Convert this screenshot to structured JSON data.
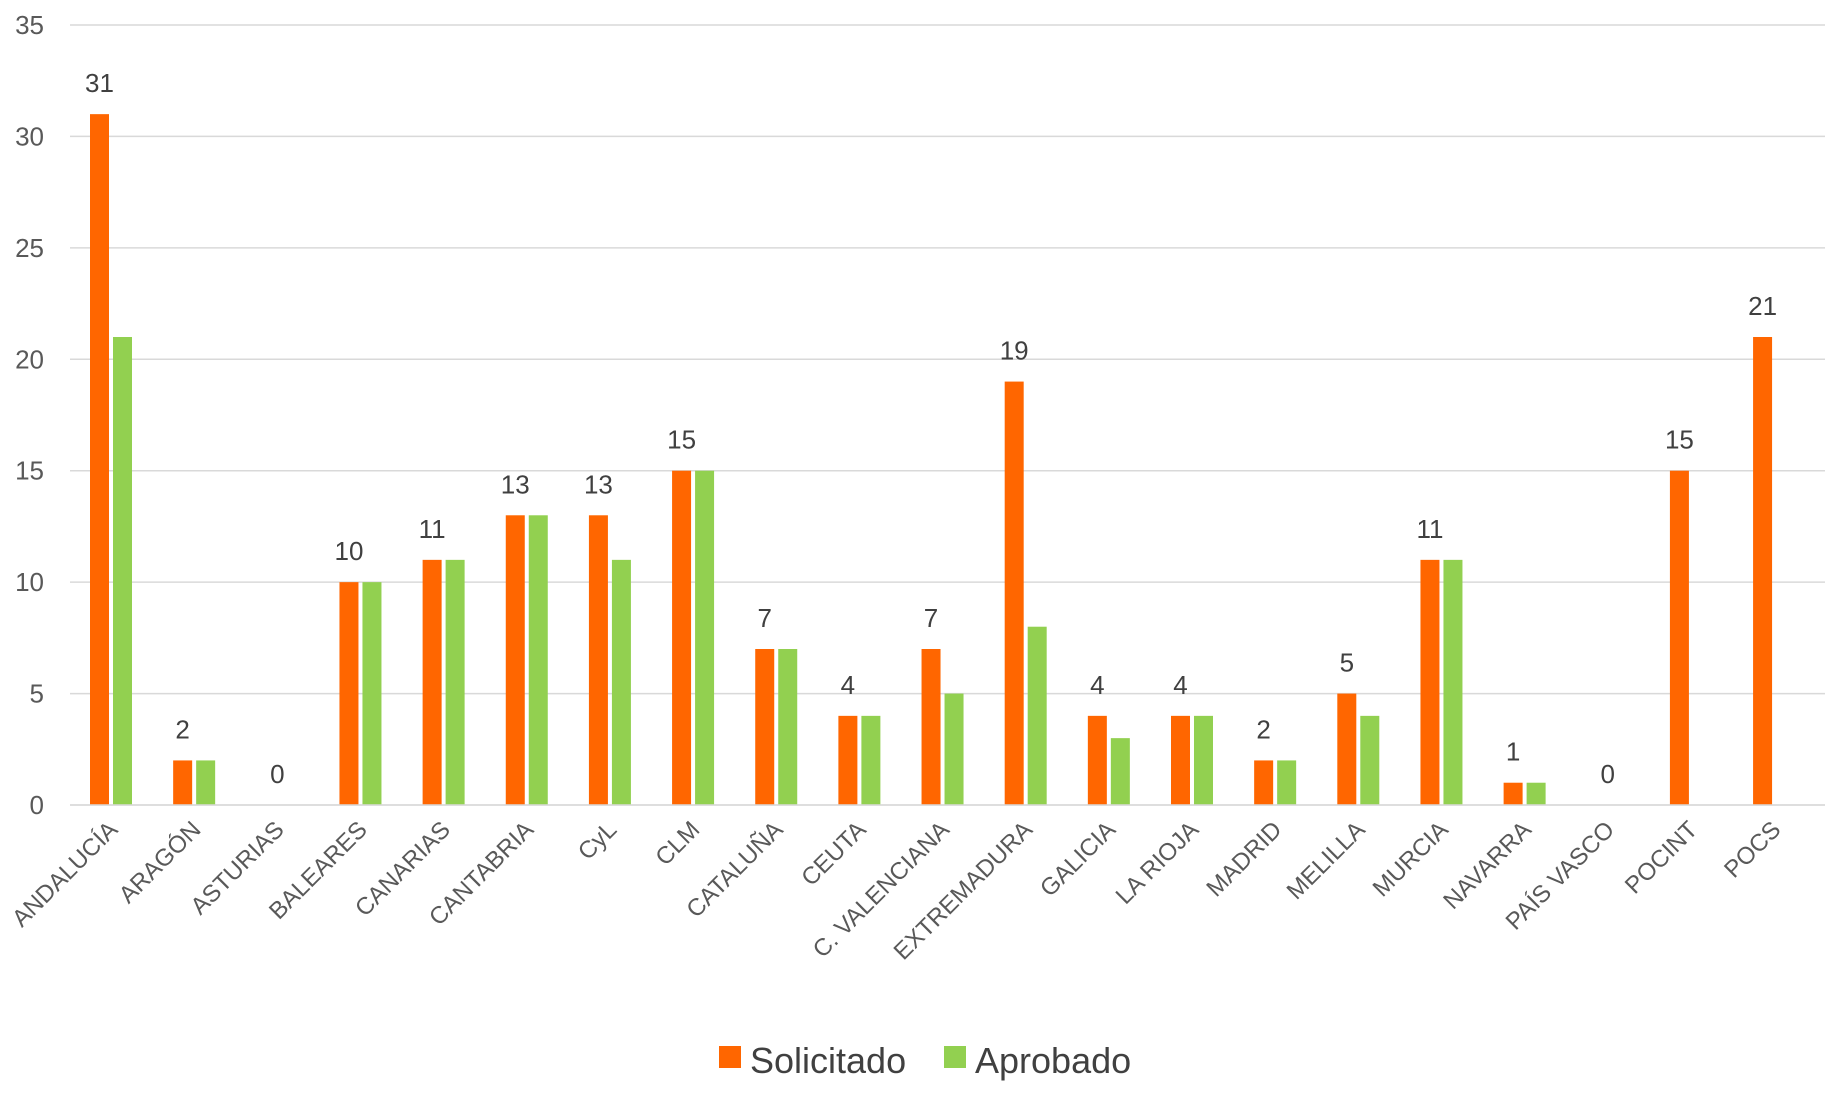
{
  "chart_data": {
    "type": "bar",
    "title": "",
    "xlabel": "",
    "ylabel": "",
    "ylim": [
      0,
      35
    ],
    "yticks": [
      0,
      5,
      10,
      15,
      20,
      25,
      30,
      35
    ],
    "grid": true,
    "legend_position": "bottom-center",
    "categories": [
      "ANDALUCÍA",
      "ARAGÓN",
      "ASTURIAS",
      "BALEARES",
      "CANARIAS",
      "CANTABRIA",
      "CyL",
      "CLM",
      "CATALUÑA",
      "CEUTA",
      "C. VALENCIANA",
      "EXTREMADURA",
      "GALICIA",
      "LA RIOJA",
      "MADRID",
      "MELILLA",
      "MURCIA",
      "NAVARRA",
      "PAÍS VASCO",
      "POCINT",
      "POCS"
    ],
    "series": [
      {
        "name": "Solicitado",
        "color": "#FF6600",
        "values": [
          31,
          2,
          0,
          10,
          11,
          13,
          13,
          15,
          7,
          4,
          7,
          19,
          4,
          4,
          2,
          5,
          11,
          1,
          0,
          15,
          21
        ],
        "data_labels": true
      },
      {
        "name": "Aprobado",
        "color": "#92D050",
        "values": [
          21,
          2,
          0,
          10,
          11,
          13,
          11,
          15,
          7,
          4,
          5,
          8,
          3,
          4,
          2,
          4,
          11,
          1,
          0,
          0,
          0
        ],
        "data_labels": false
      }
    ]
  }
}
